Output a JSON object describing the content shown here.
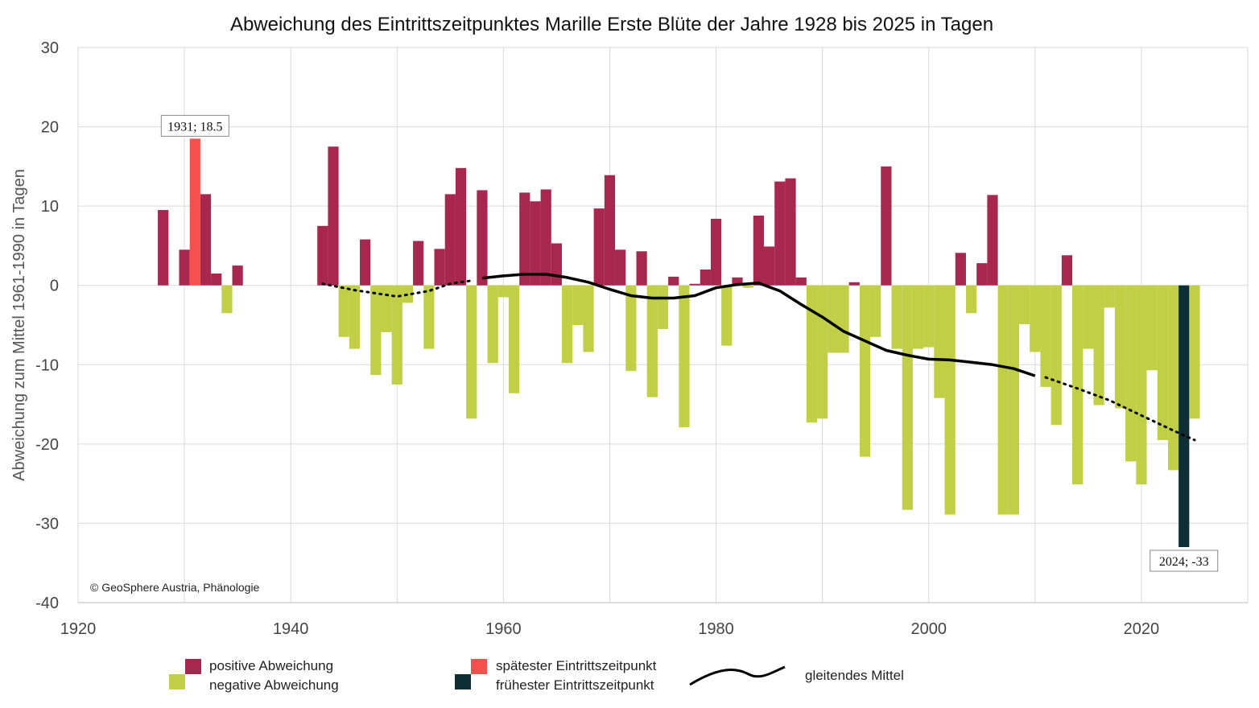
{
  "chart_data": {
    "type": "bar",
    "title": "Abweichung des Eintrittszeitpunktes Marille Erste Blüte der Jahre 1928 bis 2025 in Tagen",
    "ylabel": "Abweichung zum Mittel 1961-1990 in Tagen",
    "xlabel": "",
    "xlim": [
      1920,
      2030
    ],
    "ylim": [
      -40,
      30
    ],
    "x_ticks": [
      1920,
      1940,
      1960,
      1980,
      2000,
      2020
    ],
    "y_ticks": [
      30,
      20,
      10,
      0,
      -10,
      -20,
      -30,
      -40
    ],
    "grid": true,
    "copyright": "© GeoSphere Austria, Phänologie",
    "colors": {
      "positive": "#a8274f",
      "negative": "#c0cf45",
      "latest": "#f5504e",
      "earliest": "#0c2e34",
      "mean": "#000000",
      "grid": "#d9d9d9"
    },
    "bars": [
      {
        "year": 1928,
        "value": 9.5
      },
      {
        "year": 1930,
        "value": 4.5
      },
      {
        "year": 1931,
        "value": 18.5
      },
      {
        "year": 1932,
        "value": 11.5
      },
      {
        "year": 1933,
        "value": 1.5
      },
      {
        "year": 1934,
        "value": -3.5
      },
      {
        "year": 1935,
        "value": 2.5
      },
      {
        "year": 1943,
        "value": 7.5
      },
      {
        "year": 1944,
        "value": 17.5
      },
      {
        "year": 1945,
        "value": -6.5
      },
      {
        "year": 1946,
        "value": -8
      },
      {
        "year": 1947,
        "value": 5.8
      },
      {
        "year": 1948,
        "value": -11.3
      },
      {
        "year": 1949,
        "value": -5.9
      },
      {
        "year": 1950,
        "value": -12.5
      },
      {
        "year": 1951,
        "value": -2.2
      },
      {
        "year": 1952,
        "value": 5.6
      },
      {
        "year": 1953,
        "value": -8
      },
      {
        "year": 1954,
        "value": 4.6
      },
      {
        "year": 1955,
        "value": 11.5
      },
      {
        "year": 1956,
        "value": 14.8
      },
      {
        "year": 1957,
        "value": -16.8
      },
      {
        "year": 1958,
        "value": 12
      },
      {
        "year": 1959,
        "value": -9.8
      },
      {
        "year": 1960,
        "value": -1.5
      },
      {
        "year": 1961,
        "value": -13.6
      },
      {
        "year": 1962,
        "value": 11.7
      },
      {
        "year": 1963,
        "value": 10.6
      },
      {
        "year": 1964,
        "value": 12.1
      },
      {
        "year": 1965,
        "value": 5.3
      },
      {
        "year": 1966,
        "value": -9.8
      },
      {
        "year": 1967,
        "value": -5
      },
      {
        "year": 1968,
        "value": -8.4
      },
      {
        "year": 1969,
        "value": 9.7
      },
      {
        "year": 1970,
        "value": 13.9
      },
      {
        "year": 1971,
        "value": 4.5
      },
      {
        "year": 1972,
        "value": -10.8
      },
      {
        "year": 1973,
        "value": 4.3
      },
      {
        "year": 1974,
        "value": -14.1
      },
      {
        "year": 1975,
        "value": -5.5
      },
      {
        "year": 1976,
        "value": 1.1
      },
      {
        "year": 1977,
        "value": -17.9
      },
      {
        "year": 1978,
        "value": 0.2
      },
      {
        "year": 1979,
        "value": 2
      },
      {
        "year": 1980,
        "value": 8.4
      },
      {
        "year": 1981,
        "value": -7.6
      },
      {
        "year": 1982,
        "value": 1
      },
      {
        "year": 1983,
        "value": -0.3
      },
      {
        "year": 1984,
        "value": 8.8
      },
      {
        "year": 1985,
        "value": 4.9
      },
      {
        "year": 1986,
        "value": 13.1
      },
      {
        "year": 1987,
        "value": 13.5
      },
      {
        "year": 1988,
        "value": 1
      },
      {
        "year": 1989,
        "value": -17.3
      },
      {
        "year": 1990,
        "value": -16.8
      },
      {
        "year": 1991,
        "value": -8.5
      },
      {
        "year": 1992,
        "value": -8.5
      },
      {
        "year": 1993,
        "value": 0.4
      },
      {
        "year": 1994,
        "value": -21.6
      },
      {
        "year": 1995,
        "value": -6.5
      },
      {
        "year": 1996,
        "value": 15
      },
      {
        "year": 1997,
        "value": -8
      },
      {
        "year": 1998,
        "value": -28.3
      },
      {
        "year": 1999,
        "value": -8
      },
      {
        "year": 2000,
        "value": -7.8
      },
      {
        "year": 2001,
        "value": -14.2
      },
      {
        "year": 2002,
        "value": -28.9
      },
      {
        "year": 2003,
        "value": 4.1
      },
      {
        "year": 2004,
        "value": -3.5
      },
      {
        "year": 2005,
        "value": 2.8
      },
      {
        "year": 2006,
        "value": 11.4
      },
      {
        "year": 2007,
        "value": -28.9
      },
      {
        "year": 2008,
        "value": -28.9
      },
      {
        "year": 2009,
        "value": -4.9
      },
      {
        "year": 2010,
        "value": -8.4
      },
      {
        "year": 2011,
        "value": -12.8
      },
      {
        "year": 2012,
        "value": -17.6
      },
      {
        "year": 2013,
        "value": 3.8
      },
      {
        "year": 2014,
        "value": -25.1
      },
      {
        "year": 2015,
        "value": -8
      },
      {
        "year": 2016,
        "value": -15.1
      },
      {
        "year": 2017,
        "value": -2.8
      },
      {
        "year": 2018,
        "value": -15.5
      },
      {
        "year": 2019,
        "value": -22.2
      },
      {
        "year": 2020,
        "value": -25.1
      },
      {
        "year": 2021,
        "value": -10.7
      },
      {
        "year": 2022,
        "value": -19.5
      },
      {
        "year": 2023,
        "value": -23.3
      },
      {
        "year": 2024,
        "value": -33
      },
      {
        "year": 2025,
        "value": -16.8
      }
    ],
    "moving_average": {
      "solid": [
        [
          1958,
          0.9
        ],
        [
          1960,
          1.2
        ],
        [
          1962,
          1.4
        ],
        [
          1964,
          1.4
        ],
        [
          1966,
          1
        ],
        [
          1968,
          0.4
        ],
        [
          1970,
          -0.5
        ],
        [
          1972,
          -1.3
        ],
        [
          1974,
          -1.6
        ],
        [
          1976,
          -1.6
        ],
        [
          1978,
          -1.3
        ],
        [
          1980,
          -0.3
        ],
        [
          1982,
          0.1
        ],
        [
          1984,
          0.3
        ],
        [
          1986,
          -0.7
        ],
        [
          1988,
          -2.4
        ],
        [
          1990,
          -4
        ],
        [
          1992,
          -5.8
        ],
        [
          1994,
          -7
        ],
        [
          1996,
          -8.2
        ],
        [
          1998,
          -8.8
        ],
        [
          2000,
          -9.3
        ],
        [
          2002,
          -9.4
        ],
        [
          2004,
          -9.7
        ],
        [
          2006,
          -10
        ],
        [
          2008,
          -10.5
        ],
        [
          2010,
          -11.4
        ]
      ],
      "dotted_start": [
        [
          1943,
          0.2
        ],
        [
          1946,
          -0.6
        ],
        [
          1950,
          -1.4
        ],
        [
          1953,
          -0.7
        ],
        [
          1955,
          0.2
        ],
        [
          1957,
          0.6
        ]
      ],
      "dotted_end": [
        [
          2011,
          -11.6
        ],
        [
          2014,
          -13
        ],
        [
          2017,
          -14.5
        ],
        [
          2020,
          -16.4
        ],
        [
          2023,
          -18.3
        ],
        [
          2025,
          -19.5
        ]
      ]
    },
    "annotations": [
      {
        "year": 1931,
        "value": 18.5,
        "label": "1931; 18.5"
      },
      {
        "year": 2024,
        "value": -33,
        "label": "2024; -33"
      }
    ],
    "legend": {
      "positive": "positive Abweichung",
      "negative": "negative Abweichung",
      "latest": "spätester Eintrittszeitpunkt",
      "earliest": "frühester Eintrittszeitpunkt",
      "mean": "gleitendes Mittel"
    }
  }
}
